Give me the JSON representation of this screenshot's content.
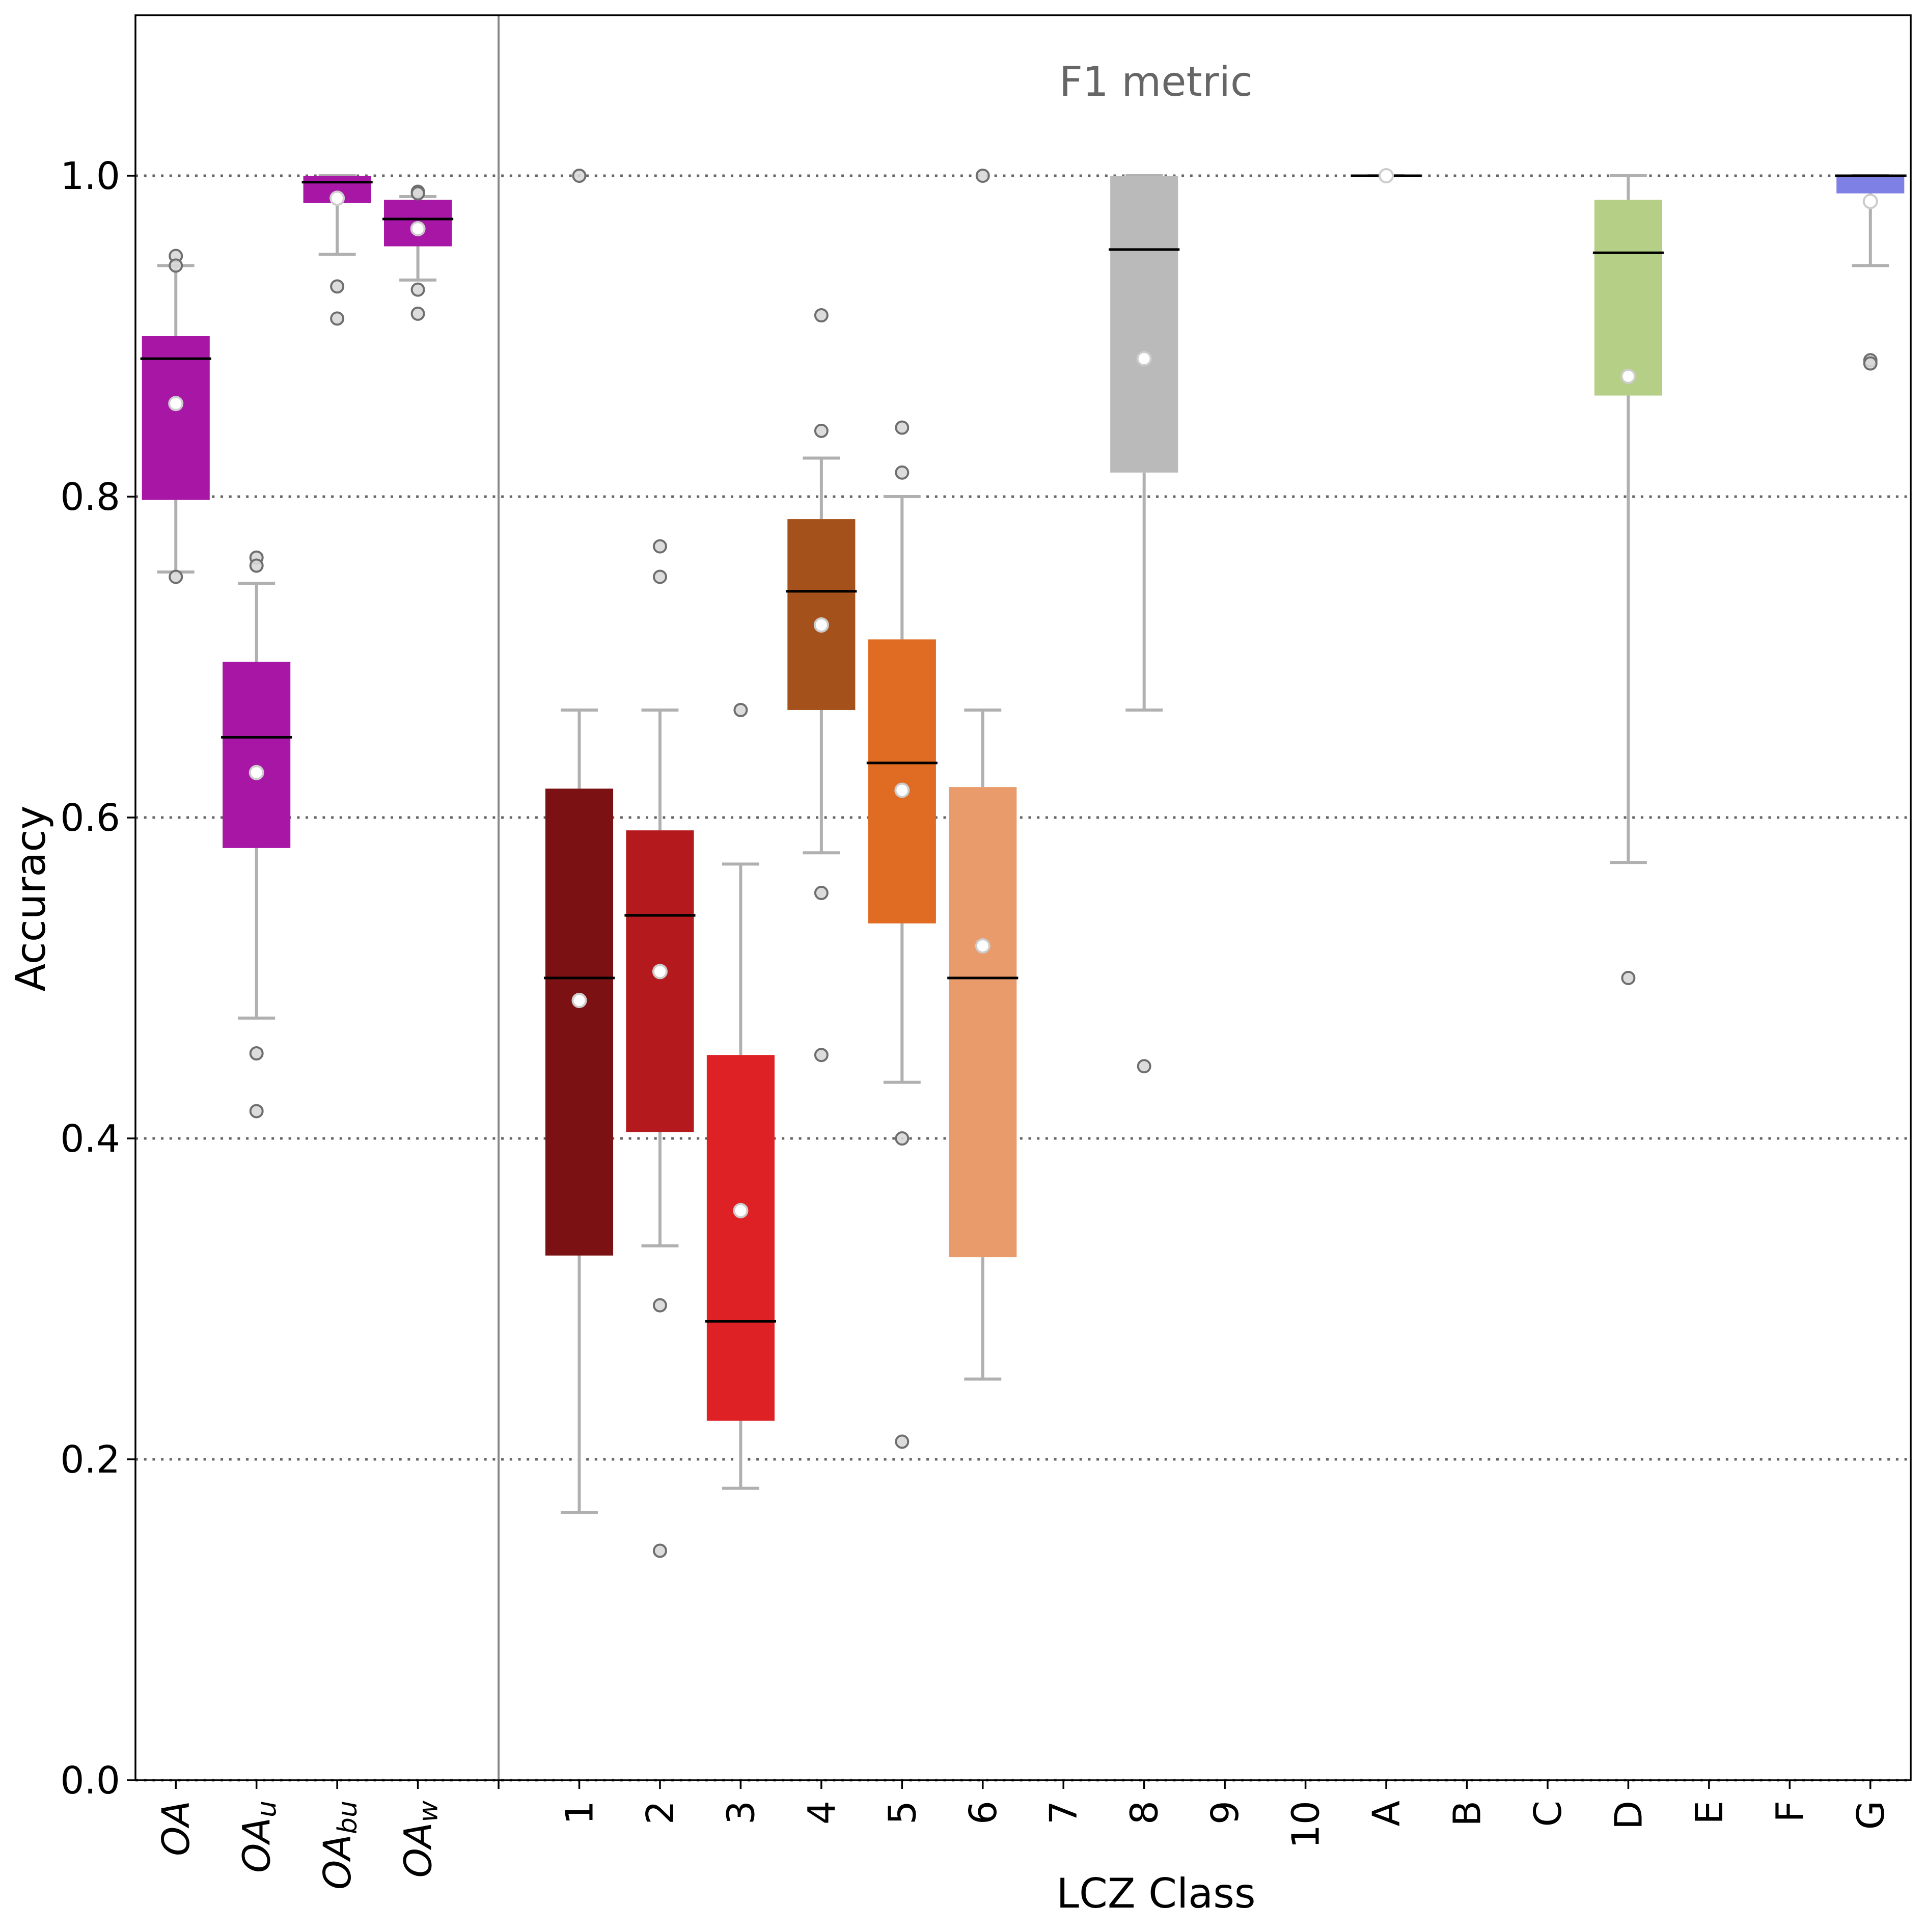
{
  "chart_data": {
    "type": "box",
    "title": "F1 metric",
    "xlabel": "LCZ Class",
    "ylabel": "Accuracy",
    "ylim": [
      0.0,
      1.1
    ],
    "yticks": [
      0.0,
      0.2,
      0.4,
      0.6,
      0.8,
      1.0
    ],
    "ytick_labels": [
      "0.0",
      "0.2",
      "0.4",
      "0.6",
      "0.8",
      "1.0"
    ],
    "grid": "horizontal dotted at y ticks",
    "group_separator_after": "OA_w",
    "categories": [
      {
        "label": "OA",
        "sub": "",
        "italic": true,
        "color": "#a716a5",
        "whislo": 0.753,
        "q1": 0.798,
        "med": 0.886,
        "q3": 0.9,
        "whishi": 0.944,
        "mean": 0.858,
        "fliers": [
          0.95,
          0.944,
          0.75
        ]
      },
      {
        "label": "OA",
        "sub": "u",
        "italic": true,
        "color": "#a716a5",
        "whislo": 0.475,
        "q1": 0.581,
        "med": 0.65,
        "q3": 0.697,
        "whishi": 0.746,
        "mean": 0.628,
        "fliers": [
          0.762,
          0.757,
          0.453,
          0.417
        ]
      },
      {
        "label": "OA",
        "sub": "bu",
        "italic": true,
        "color": "#a716a5",
        "whislo": 0.951,
        "q1": 0.983,
        "med": 0.996,
        "q3": 1.0,
        "whishi": 1.0,
        "mean": 0.986,
        "fliers": [
          0.931,
          0.911
        ]
      },
      {
        "label": "OA",
        "sub": "w",
        "italic": true,
        "color": "#a716a5",
        "whislo": 0.935,
        "q1": 0.956,
        "med": 0.973,
        "q3": 0.985,
        "whishi": 0.987,
        "mean": 0.967,
        "fliers": [
          0.99,
          0.989,
          0.929,
          0.914
        ]
      },
      {
        "label": "",
        "separator": true
      },
      {
        "label": "1",
        "color": "#7b1113",
        "whislo": 0.167,
        "q1": 0.327,
        "med": 0.5,
        "q3": 0.618,
        "whishi": 0.667,
        "mean": 0.486,
        "fliers": [
          1.0
        ]
      },
      {
        "label": "2",
        "color": "#b41a1d",
        "whislo": 0.333,
        "q1": 0.404,
        "med": 0.539,
        "q3": 0.592,
        "whishi": 0.667,
        "mean": 0.504,
        "fliers": [
          0.769,
          0.75,
          0.296,
          0.143
        ]
      },
      {
        "label": "3",
        "color": "#dd2125",
        "whislo": 0.182,
        "q1": 0.224,
        "med": 0.286,
        "q3": 0.452,
        "whishi": 0.571,
        "mean": 0.355,
        "fliers": [
          0.667
        ]
      },
      {
        "label": "4",
        "color": "#a5511b",
        "whislo": 0.578,
        "q1": 0.667,
        "med": 0.741,
        "q3": 0.786,
        "whishi": 0.824,
        "mean": 0.72,
        "fliers": [
          0.913,
          0.841,
          0.553,
          0.452
        ]
      },
      {
        "label": "5",
        "color": "#df6c22",
        "whislo": 0.435,
        "q1": 0.534,
        "med": 0.634,
        "q3": 0.711,
        "whishi": 0.8,
        "mean": 0.617,
        "fliers": [
          0.843,
          0.815,
          0.4,
          0.211
        ]
      },
      {
        "label": "6",
        "color": "#e99b6b",
        "whislo": 0.25,
        "q1": 0.326,
        "med": 0.5,
        "q3": 0.619,
        "whishi": 0.667,
        "mean": 0.52,
        "fliers": [
          1.0
        ]
      },
      {
        "label": "7"
      },
      {
        "label": "8",
        "color": "#bababa",
        "whislo": 0.667,
        "q1": 0.815,
        "med": 0.954,
        "q3": 1.0,
        "whishi": 1.0,
        "mean": 0.886,
        "fliers": [
          0.445
        ]
      },
      {
        "label": "9"
      },
      {
        "label": "10"
      },
      {
        "label": "A",
        "color": "#006a00",
        "whislo": 1.0,
        "q1": 1.0,
        "med": 1.0,
        "q3": 1.0,
        "whishi": 1.0,
        "mean": 1.0,
        "fliers": []
      },
      {
        "label": "B"
      },
      {
        "label": "C"
      },
      {
        "label": "D",
        "color": "#b5d086",
        "whislo": 0.572,
        "q1": 0.863,
        "med": 0.952,
        "q3": 0.985,
        "whishi": 1.0,
        "mean": 0.875,
        "fliers": [
          0.5
        ]
      },
      {
        "label": "E"
      },
      {
        "label": "F"
      },
      {
        "label": "G",
        "color": "#7f80e6",
        "whislo": 0.944,
        "q1": 0.989,
        "med": 1.0,
        "q3": 1.0,
        "whishi": 1.0,
        "mean": 0.984,
        "fliers": [
          0.885,
          0.883
        ]
      }
    ],
    "style": {
      "median_color": "#000000",
      "whisker_color": "#b0b0b0",
      "mean_marker_fill": "#ffffff",
      "mean_marker_edge": "#cccccc",
      "flier_fill": "#d8d8d8",
      "flier_edge": "#6e6e6e",
      "grid_color": "#666666",
      "separator_color": "#888888"
    }
  }
}
